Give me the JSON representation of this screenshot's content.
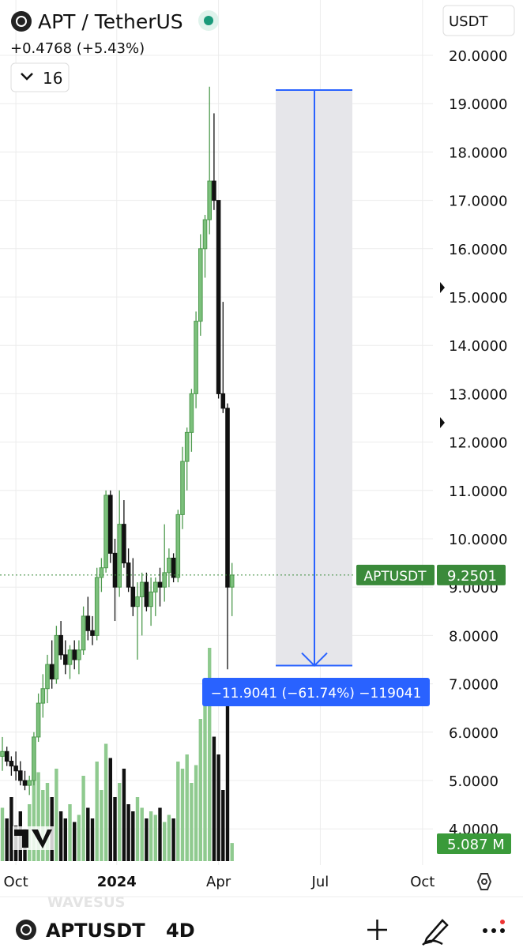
{
  "header": {
    "symbol_title": "APT / TetherUS",
    "change": "+0.4768 (+5.43%)",
    "indicator_count": "16",
    "currency": "USDT"
  },
  "chart_data": {
    "type": "candlestick",
    "open": [
      5.5,
      5.6,
      5.4,
      5.3,
      5.2,
      5.0,
      4.9,
      5.0,
      5.9,
      6.6,
      6.9,
      7.4,
      7.1,
      8.0,
      7.6,
      7.4,
      7.7,
      7.5,
      7.7,
      8.4,
      8.1,
      8.0,
      9.2,
      9.4,
      10.9,
      9.7,
      9.0,
      10.3,
      9.5,
      9.0,
      8.6,
      8.8,
      9.1,
      8.6,
      8.9,
      9.1,
      9.0,
      9.3,
      9.6,
      9.2,
      10.5,
      11.6,
      12.2,
      13.0,
      14.5,
      16.0,
      16.6,
      17.4,
      17.0,
      13.0,
      12.7,
      9.0
    ],
    "high": [
      5.9,
      5.7,
      5.5,
      5.6,
      5.4,
      5.2,
      5.1,
      6.0,
      6.8,
      7.2,
      7.6,
      7.9,
      8.2,
      8.3,
      7.9,
      7.8,
      7.9,
      7.9,
      8.6,
      8.8,
      8.4,
      9.4,
      9.6,
      11.0,
      11.0,
      10.0,
      11.0,
      10.8,
      9.8,
      9.6,
      9.1,
      9.3,
      9.3,
      9.2,
      9.2,
      9.4,
      10.3,
      9.8,
      9.7,
      10.6,
      11.9,
      12.3,
      13.1,
      14.7,
      16.3,
      16.7,
      19.35,
      18.8,
      17.0,
      14.9,
      12.8,
      9.5
    ],
    "low": [
      5.2,
      5.3,
      5.1,
      5.0,
      4.9,
      4.8,
      4.7,
      4.9,
      5.8,
      6.3,
      6.6,
      6.9,
      7.0,
      7.5,
      7.2,
      7.1,
      7.3,
      7.2,
      7.6,
      7.9,
      7.8,
      7.9,
      8.9,
      9.3,
      9.5,
      8.3,
      8.8,
      9.4,
      8.9,
      8.4,
      7.5,
      8.0,
      8.5,
      8.2,
      8.4,
      8.6,
      8.7,
      9.0,
      9.1,
      9.1,
      10.2,
      11.0,
      11.8,
      12.7,
      14.2,
      15.4,
      16.3,
      16.8,
      12.9,
      12.6,
      7.3,
      8.4
    ],
    "close": [
      5.6,
      5.4,
      5.3,
      5.2,
      5.0,
      4.9,
      5.0,
      5.9,
      6.6,
      6.9,
      7.4,
      7.1,
      8.0,
      7.6,
      7.4,
      7.7,
      7.5,
      7.7,
      8.4,
      8.1,
      8.0,
      9.2,
      9.4,
      10.9,
      9.7,
      9.0,
      10.3,
      9.5,
      9.0,
      8.6,
      8.8,
      9.1,
      8.6,
      8.9,
      9.1,
      9.0,
      9.3,
      9.6,
      9.2,
      10.5,
      11.6,
      12.2,
      13.0,
      14.5,
      16.0,
      16.6,
      17.4,
      17.0,
      13.0,
      12.7,
      9.0,
      9.25
    ],
    "volume": [
      15,
      12,
      18,
      10,
      14,
      9,
      16,
      30,
      25,
      20,
      22,
      18,
      26,
      14,
      12,
      16,
      11,
      13,
      24,
      15,
      12,
      28,
      20,
      33,
      29,
      18,
      22,
      26,
      16,
      14,
      18,
      15,
      12,
      14,
      13,
      15,
      11,
      13,
      12,
      28,
      26,
      30,
      22,
      27,
      40,
      45,
      60,
      35,
      30,
      20,
      49,
      5.087
    ],
    "up_color": "#4e9a4e",
    "down_color": "#111111",
    "volume_up_color": "#8fca8f",
    "ylim": [
      3.5,
      20.5
    ],
    "yticks": [
      {
        "value": 4,
        "label": "4.0000"
      },
      {
        "value": 5,
        "label": "5.0000"
      },
      {
        "value": 6,
        "label": "6.0000"
      },
      {
        "value": 7,
        "label": "7.0000"
      },
      {
        "value": 8,
        "label": "8.0000"
      },
      {
        "value": 9,
        "label": "9.0000"
      },
      {
        "value": 10,
        "label": "10.0000"
      },
      {
        "value": 11,
        "label": "11.0000"
      },
      {
        "value": 12,
        "label": "12.0000"
      },
      {
        "value": 13,
        "label": "13.0000"
      },
      {
        "value": 14,
        "label": "14.0000"
      },
      {
        "value": 15,
        "label": "15.0000"
      },
      {
        "value": 16,
        "label": "16.0000"
      },
      {
        "value": 17,
        "label": "17.0000"
      },
      {
        "value": 18,
        "label": "18.0000"
      },
      {
        "value": 19,
        "label": "19.0000"
      },
      {
        "value": 20,
        "label": "20.0000"
      }
    ],
    "xticks": [
      {
        "value": 3,
        "label": "Oct"
      },
      {
        "value": 25.4,
        "label": "2024"
      },
      {
        "value": 48,
        "label": "Apr"
      },
      {
        "value": 70.6,
        "label": "Jul"
      },
      {
        "value": 93.3,
        "label": "Oct"
      }
    ],
    "grid": true,
    "last_price": 9.2501,
    "last_price_symbol": "APTUSDT",
    "volume_label": "5.087 M",
    "measure": {
      "from": 19.281,
      "to": 7.377,
      "label": "−11.9041 (−61.74%) −119041"
    },
    "watermark": "WAVESUS"
  },
  "footer": {
    "symbol": "APTUSDT",
    "interval": "4D"
  }
}
